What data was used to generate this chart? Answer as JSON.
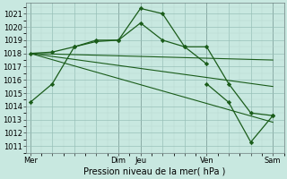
{
  "background_color": "#c8e8e0",
  "grid_color_major": "#98c0b8",
  "grid_color_minor": "#b8d8d0",
  "line_color": "#1a5c1a",
  "title": "Pression niveau de la mer( hPa )",
  "tick_fontsize": 6.0,
  "xlabel_fontsize": 7.0,
  "ylim": [
    1010.5,
    1021.8
  ],
  "yticks": [
    1011,
    1012,
    1013,
    1014,
    1015,
    1016,
    1017,
    1018,
    1019,
    1020,
    1021
  ],
  "xlim": [
    -0.2,
    11.5
  ],
  "xtick_labels": [
    "Mer",
    "",
    "",
    "",
    "Dim",
    "Jeu",
    "",
    "",
    "Ven",
    "",
    "",
    "Sam"
  ],
  "xtick_positions": [
    0,
    1,
    2,
    3,
    4,
    5,
    6,
    7,
    8,
    9,
    10,
    11
  ],
  "vlines_x": [
    0,
    4,
    5,
    8,
    11
  ],
  "series": [
    {
      "x": [
        0,
        1,
        2,
        3,
        4,
        5,
        6,
        7,
        8
      ],
      "y": [
        1014.3,
        1015.7,
        1018.5,
        1018.9,
        1019.0,
        1021.4,
        1021.0,
        1018.5,
        1017.2
      ],
      "marker": "D",
      "markersize": 2.2,
      "linewidth": 0.9
    },
    {
      "x": [
        0,
        1,
        2,
        3,
        4,
        5,
        6,
        7,
        8,
        9,
        10,
        11
      ],
      "y": [
        1018.0,
        1018.1,
        1018.5,
        1019.0,
        1019.0,
        1020.3,
        1019.0,
        1018.5,
        1018.5,
        1015.7,
        1013.5,
        1013.3
      ],
      "marker": "D",
      "markersize": 2.2,
      "linewidth": 0.9
    },
    {
      "x": [
        0,
        11
      ],
      "y": [
        1018.0,
        1017.5
      ],
      "marker": null,
      "markersize": 0,
      "linewidth": 0.8
    },
    {
      "x": [
        0,
        11
      ],
      "y": [
        1018.0,
        1015.5
      ],
      "marker": null,
      "markersize": 0,
      "linewidth": 0.8
    },
    {
      "x": [
        0,
        11
      ],
      "y": [
        1018.0,
        1012.8
      ],
      "marker": null,
      "markersize": 0,
      "linewidth": 0.8
    },
    {
      "x": [
        8,
        9,
        10,
        11
      ],
      "y": [
        1015.7,
        1014.3,
        1011.3,
        1013.3
      ],
      "marker": "D",
      "markersize": 2.2,
      "linewidth": 0.9
    }
  ]
}
